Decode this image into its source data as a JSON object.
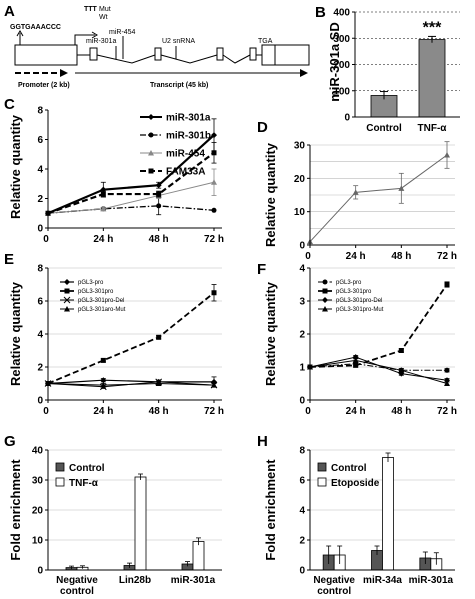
{
  "panels": {
    "A": "A",
    "B": "B",
    "C": "C",
    "D": "D",
    "E": "E",
    "F": "F",
    "G": "G",
    "H": "H"
  },
  "diagram": {
    "seq": "GGTGAAACCC",
    "seq_marks": "TTT",
    "mut": "Mut",
    "wt": "Wt",
    "mir301a": "miR-301a",
    "mir454": "miR-454",
    "u2": "U2 snRNA",
    "tga": "TGA",
    "promoter": "Promoter (2 kb)",
    "transcript": "Transcript  (45 kb)"
  },
  "chart_data": [
    {
      "panel": "B",
      "type": "bar",
      "categories": [
        "Control",
        "TNF-α"
      ],
      "values": [
        82,
        295
      ],
      "errors": [
        15,
        12
      ],
      "ylabel": "miR-301a SD",
      "ylim": [
        0,
        400
      ],
      "yticks": [
        "0",
        "100",
        "200",
        "300",
        "400"
      ],
      "annotation": "***",
      "grid": true
    },
    {
      "panel": "C",
      "type": "line",
      "x": [
        "0",
        "24 h",
        "48 h",
        "72 h"
      ],
      "ylabel": "Relative quantity",
      "ylim": [
        0,
        8
      ],
      "yticks": [
        "0",
        "2",
        "4",
        "6",
        "8"
      ],
      "legend_position": "top-right",
      "series": [
        {
          "name": "miR-301a",
          "values": [
            1,
            2.6,
            2.9,
            6.3
          ],
          "errors": [
            0,
            0.5,
            0.2,
            1.1
          ],
          "marker": "diamond",
          "dash": "solid",
          "width": 2.2,
          "color": "#000000"
        },
        {
          "name": "miR-301b",
          "values": [
            1,
            1.3,
            1.5,
            1.2
          ],
          "errors": [
            0,
            0.1,
            0.6,
            0
          ],
          "marker": "circle",
          "dash": "dashdot",
          "width": 1.3,
          "color": "#000000"
        },
        {
          "name": "miR-454",
          "values": [
            1,
            1.3,
            2.2,
            3.1
          ],
          "errors": [
            0,
            0.1,
            0.2,
            0.9
          ],
          "marker": "triangle",
          "dash": "solid",
          "width": 1,
          "color": "#888888"
        },
        {
          "name": "FAM33A",
          "values": [
            1,
            2.3,
            2.3,
            5.1
          ],
          "errors": [
            0,
            0.2,
            0.2,
            0.7
          ],
          "marker": "square",
          "dash": "dash",
          "width": 2.2,
          "color": "#000000"
        }
      ]
    },
    {
      "panel": "D",
      "type": "line",
      "x": [
        "0",
        "24 h",
        "48 h",
        "72 h"
      ],
      "ylabel": "Relative quantity",
      "ylim": [
        0,
        30
      ],
      "yticks": [
        "0",
        "10",
        "20",
        "30"
      ],
      "grid_lines": [
        5,
        10,
        15,
        20,
        25,
        30
      ],
      "series": [
        {
          "values": [
            1,
            15.8,
            17,
            27
          ],
          "errors": [
            0,
            2,
            4.5,
            4
          ],
          "marker": "triangle",
          "dash": "solid",
          "width": 1,
          "color": "#666666"
        }
      ]
    },
    {
      "panel": "E",
      "type": "line",
      "x": [
        "0",
        "24 h",
        "48 h",
        "72 h"
      ],
      "ylabel": "Relative quantity",
      "ylim": [
        0,
        8
      ],
      "yticks": [
        "0",
        "2",
        "4",
        "6",
        "8"
      ],
      "legend_position": "top-left",
      "series": [
        {
          "name": "pGL3-pro",
          "values": [
            1,
            1.2,
            1.1,
            1.1
          ],
          "errors": [
            0,
            0.1,
            0.1,
            0.3
          ],
          "marker": "diamond",
          "dash": "solid",
          "width": 1.2,
          "color": "#000000"
        },
        {
          "name": "pGL3-301pro",
          "values": [
            1,
            2.4,
            3.8,
            6.5
          ],
          "errors": [
            0,
            0.1,
            0.1,
            0.5
          ],
          "marker": "square",
          "dash": "dash",
          "width": 1.8,
          "color": "#000000"
        },
        {
          "name": "pGL3-301pro-Del",
          "values": [
            1,
            0.8,
            1.1,
            0.9
          ],
          "errors": [
            0,
            0.1,
            0.1,
            0.1
          ],
          "marker": "cross",
          "dash": "solid",
          "width": 1,
          "color": "#000000"
        },
        {
          "name": "pGL3-301aro-Mut",
          "values": [
            1,
            0.9,
            1,
            0.9
          ],
          "errors": [
            0,
            0.1,
            0.1,
            0.1
          ],
          "marker": "triangle",
          "dash": "solid",
          "width": 1,
          "color": "#000000"
        }
      ]
    },
    {
      "panel": "F",
      "type": "line",
      "x": [
        "0",
        "24 h",
        "48 h",
        "72 h"
      ],
      "ylabel": "Relative quantity",
      "ylim": [
        0,
        4
      ],
      "yticks": [
        "0",
        "1",
        "2",
        "3",
        "4"
      ],
      "legend_position": "top-left",
      "series": [
        {
          "name": "pGL3-pro",
          "values": [
            1,
            1.1,
            0.9,
            0.9
          ],
          "errors": [
            0,
            0.05,
            0.05,
            0.05
          ],
          "marker": "circle",
          "dash": "dashdot",
          "width": 1,
          "color": "#000000"
        },
        {
          "name": "pGL3-301pro",
          "values": [
            1,
            1.05,
            1.5,
            3.5
          ],
          "errors": [
            0,
            0.05,
            0.05,
            0.08
          ],
          "marker": "square",
          "dash": "dash",
          "width": 1.8,
          "color": "#000000"
        },
        {
          "name": "pGL3-301pro-Del",
          "values": [
            1,
            1.3,
            0.8,
            0.6
          ],
          "errors": [
            0,
            0.05,
            0.05,
            0.05
          ],
          "marker": "diamond",
          "dash": "solid",
          "width": 1,
          "color": "#000000"
        },
        {
          "name": "pGL3-301pro-Mut",
          "values": [
            1,
            1.2,
            0.9,
            0.5
          ],
          "errors": [
            0,
            0.05,
            0.05,
            0.05
          ],
          "marker": "triangle",
          "dash": "solid",
          "width": 1,
          "color": "#000000"
        }
      ]
    },
    {
      "panel": "G",
      "type": "bar",
      "categories": [
        "Negative\ncontrol",
        "Lin28b",
        "miR-301a"
      ],
      "ylabel": "Fold enrichment",
      "ylim": [
        0,
        40
      ],
      "yticks": [
        "0",
        "10",
        "20",
        "30",
        "40"
      ],
      "legend_position": "top-left",
      "grid": true,
      "series": [
        {
          "name": "Control",
          "values": [
            0.8,
            1.5,
            2.0
          ],
          "errors": [
            0.5,
            0.8,
            0.8
          ],
          "color": "#555555"
        },
        {
          "name": "TNF-α",
          "values": [
            0.9,
            31.0,
            9.5
          ],
          "errors": [
            0.5,
            1.0,
            1.2
          ],
          "color": "#ffffff"
        }
      ]
    },
    {
      "panel": "H",
      "type": "bar",
      "categories": [
        "Negative\ncontrol",
        "miR-34a",
        "miR-301a"
      ],
      "ylabel": "Fold enrichment",
      "ylim": [
        0,
        8
      ],
      "yticks": [
        "0",
        "2",
        "4",
        "6",
        "8"
      ],
      "legend_position": "top-left",
      "grid": true,
      "series": [
        {
          "name": "Control",
          "values": [
            1.0,
            1.3,
            0.8
          ],
          "errors": [
            0.6,
            0.3,
            0.4
          ],
          "color": "#555555"
        },
        {
          "name": "Etoposide",
          "values": [
            1.0,
            7.5,
            0.75
          ],
          "errors": [
            0.6,
            0.3,
            0.4
          ],
          "color": "#ffffff"
        }
      ]
    }
  ]
}
